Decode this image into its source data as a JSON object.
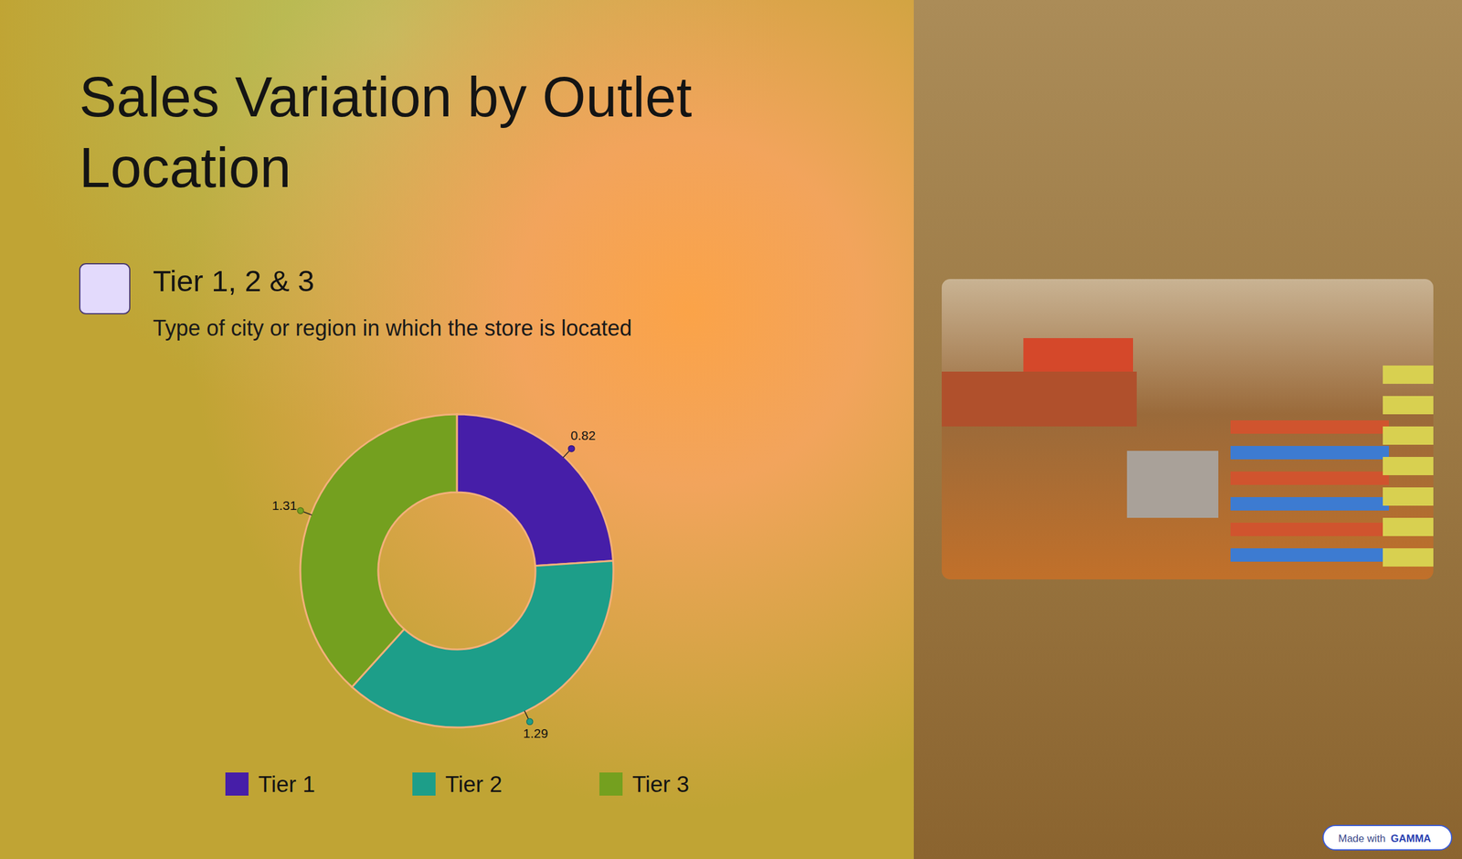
{
  "chart_data": {
    "type": "donut",
    "title": "Sales Variation by Outlet Location",
    "categories": [
      "Tier 1",
      "Tier 2",
      "Tier 3"
    ],
    "values": [
      0.82,
      1.29,
      1.31
    ],
    "colors": [
      "#461ea8",
      "#1d9e89",
      "#74a01f"
    ],
    "data_labels": true,
    "legend": "bottom"
  },
  "card": {
    "heading": "Tier 1, 2 & 3",
    "text": "Type of city or region in which the store is located"
  },
  "badge": {
    "prefix": "Made with",
    "brand": "GAMMA"
  }
}
